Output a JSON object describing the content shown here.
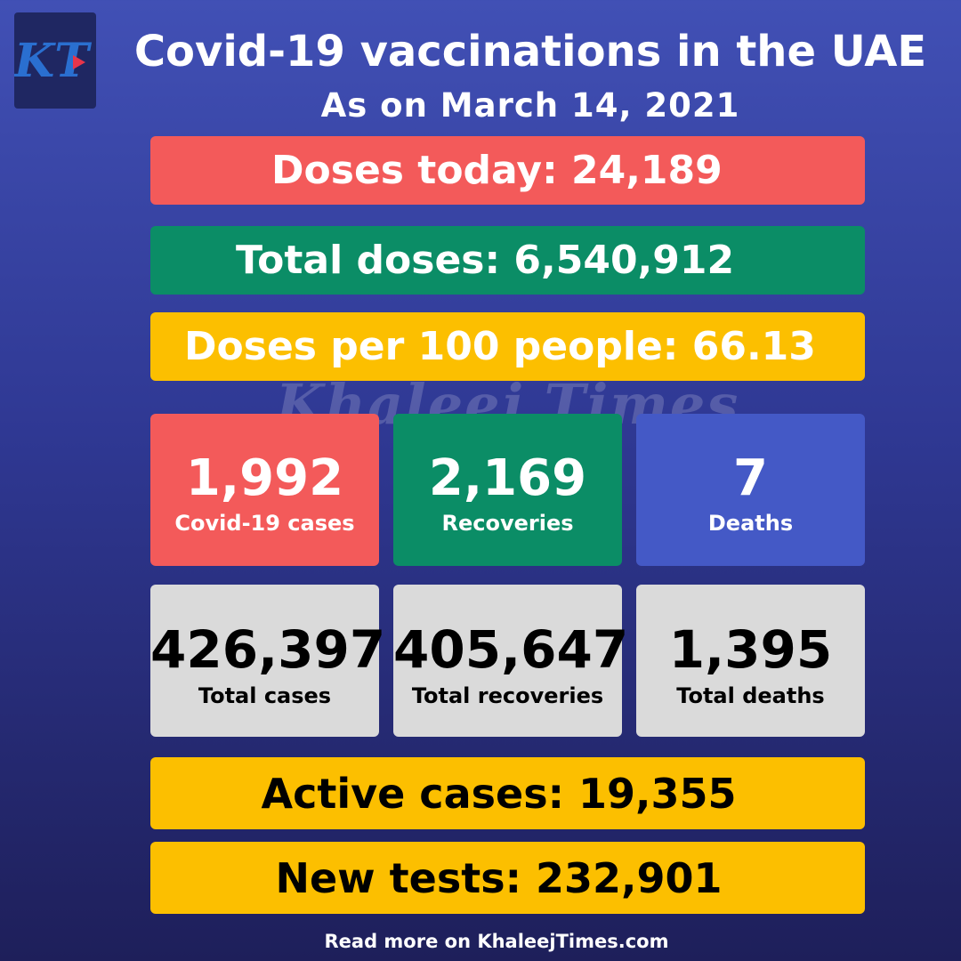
{
  "header": {
    "title": "Covid-19 vaccinations in the UAE",
    "subtitle": "As on March 14, 2021",
    "logo_icon": "khaleej-times-logo-icon",
    "logo_text": "KT"
  },
  "watermark": "Khaleej Times",
  "vaccination": {
    "doses_today": "Doses today: 24,189",
    "total_doses": "Total doses: 6,540,912",
    "doses_per_100": "Doses per 100 people: 66.13"
  },
  "daily": [
    {
      "value": "1,992",
      "label": "Covid-19 cases"
    },
    {
      "value": "2,169",
      "label": "Recoveries"
    },
    {
      "value": "7",
      "label": "Deaths"
    }
  ],
  "totals": [
    {
      "value": "426,397",
      "label": "Total cases"
    },
    {
      "value": "405,647",
      "label": "Total recoveries"
    },
    {
      "value": "1,395",
      "label": "Total deaths"
    }
  ],
  "summary": {
    "active_cases": "Active cases: 19,355",
    "new_tests": "New tests: 232,901"
  },
  "footer": {
    "text": "Read more on KhaleejTimes.com"
  },
  "colors": {
    "red": "#f35a5a",
    "green": "#0b8d66",
    "yellow": "#fcbf00",
    "blue": "#4459c6",
    "gray": "#dadada",
    "background": "#2f3893"
  }
}
